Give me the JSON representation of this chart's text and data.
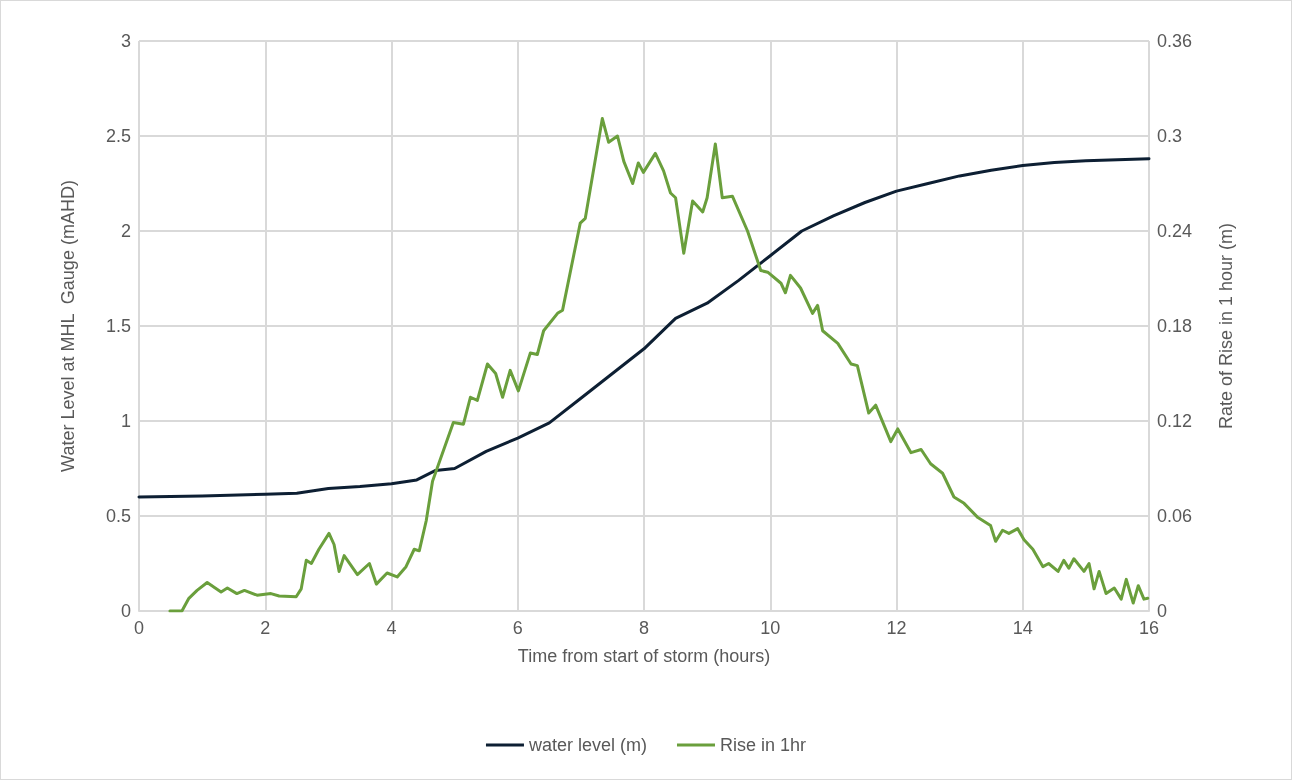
{
  "chart_data": {
    "type": "line",
    "xlabel": "Time from start of storm (hours)",
    "ylabel": "Water Level at MHL  Gauge (mAHD)",
    "y2label": "Rate of Rise in 1 hour (m)",
    "xlim": [
      0,
      16
    ],
    "xticks": [
      0,
      2,
      4,
      6,
      8,
      10,
      12,
      14,
      16
    ],
    "ylim": [
      0,
      3
    ],
    "yticks": [
      0,
      0.5,
      1,
      1.5,
      2,
      2.5,
      3
    ],
    "y2lim": [
      0,
      0.36
    ],
    "y2ticks": [
      0,
      0.06,
      0.12,
      0.18,
      0.24,
      0.3,
      0.36
    ],
    "grid": true,
    "legend": "bottom",
    "marker": "none",
    "line_style": "solid",
    "series": [
      {
        "name": "water level (m)",
        "color": "#0d1f33",
        "x": [
          0,
          1,
          2,
          2.5,
          3,
          3.5,
          4,
          4.4,
          4.7,
          5,
          5.5,
          6,
          6.5,
          7,
          7.5,
          8,
          8.5,
          9,
          9.5,
          10,
          10.5,
          11,
          11.5,
          12,
          12.5,
          13,
          13.5,
          14,
          14.5,
          15,
          15.5,
          16
        ],
        "values": [
          0.6,
          0.605,
          0.615,
          0.62,
          0.645,
          0.655,
          0.67,
          0.69,
          0.74,
          0.75,
          0.84,
          0.91,
          0.99,
          1.12,
          1.25,
          1.38,
          1.54,
          1.62,
          1.74,
          1.87,
          2.0,
          2.08,
          2.15,
          2.21,
          2.25,
          2.29,
          2.32,
          2.345,
          2.36,
          2.37,
          2.375,
          2.38
        ]
      },
      {
        "name": "Rise in 1hr",
        "color": "#6a9f3c",
        "axis": "y2",
        "x": [
          0.49,
          0.68,
          0.79,
          0.92,
          1.08,
          1.3,
          1.4,
          1.55,
          1.67,
          1.87,
          2.09,
          2.22,
          2.49,
          2.57,
          2.65,
          2.73,
          2.85,
          3.01,
          3.09,
          3.17,
          3.25,
          3.46,
          3.65,
          3.76,
          3.93,
          4.09,
          4.23,
          4.36,
          4.44,
          4.55,
          4.65,
          4.98,
          5.14,
          5.25,
          5.36,
          5.52,
          5.65,
          5.76,
          5.88,
          6.01,
          6.2,
          6.31,
          6.41,
          6.63,
          6.71,
          6.99,
          7.07,
          7.34,
          7.44,
          7.58,
          7.68,
          7.82,
          7.91,
          7.99,
          8.18,
          8.31,
          8.42,
          8.5,
          8.63,
          8.77,
          8.93,
          9.0,
          9.13,
          9.24,
          9.4,
          9.64,
          9.85,
          9.96,
          10.17,
          10.24,
          10.32,
          10.48,
          10.67,
          10.75,
          10.83,
          11.07,
          11.28,
          11.38,
          11.56,
          11.67,
          11.91,
          12.02,
          12.23,
          12.39,
          12.54,
          12.73,
          12.91,
          13.07,
          13.29,
          13.49,
          13.57,
          13.68,
          13.78,
          13.92,
          14.02,
          14.16,
          14.32,
          14.41,
          14.56,
          14.65,
          14.73,
          14.81,
          14.97,
          15.05,
          15.13,
          15.21,
          15.32,
          15.45,
          15.56,
          15.64,
          15.75,
          15.83,
          15.92,
          15.98
        ],
        "values": [
          0,
          0,
          0.008,
          0.013,
          0.018,
          0.012,
          0.0145,
          0.011,
          0.013,
          0.01,
          0.011,
          0.0095,
          0.009,
          0.014,
          0.032,
          0.03,
          0.039,
          0.049,
          0.042,
          0.025,
          0.035,
          0.023,
          0.03,
          0.017,
          0.024,
          0.0215,
          0.028,
          0.039,
          0.038,
          0.057,
          0.082,
          0.119,
          0.118,
          0.135,
          0.133,
          0.156,
          0.15,
          0.135,
          0.152,
          0.139,
          0.163,
          0.162,
          0.177,
          0.188,
          0.19,
          0.245,
          0.248,
          0.311,
          0.296,
          0.3,
          0.284,
          0.27,
          0.283,
          0.277,
          0.289,
          0.278,
          0.264,
          0.261,
          0.226,
          0.259,
          0.252,
          0.261,
          0.295,
          0.261,
          0.262,
          0.24,
          0.215,
          0.214,
          0.207,
          0.201,
          0.212,
          0.204,
          0.188,
          0.193,
          0.177,
          0.169,
          0.156,
          0.155,
          0.125,
          0.13,
          0.107,
          0.115,
          0.1,
          0.102,
          0.093,
          0.087,
          0.072,
          0.068,
          0.059,
          0.054,
          0.044,
          0.051,
          0.049,
          0.052,
          0.045,
          0.039,
          0.028,
          0.03,
          0.025,
          0.032,
          0.027,
          0.033,
          0.025,
          0.03,
          0.014,
          0.025,
          0.011,
          0.0145,
          0.0075,
          0.02,
          0.005,
          0.016,
          0.0075,
          0.008
        ]
      }
    ]
  }
}
